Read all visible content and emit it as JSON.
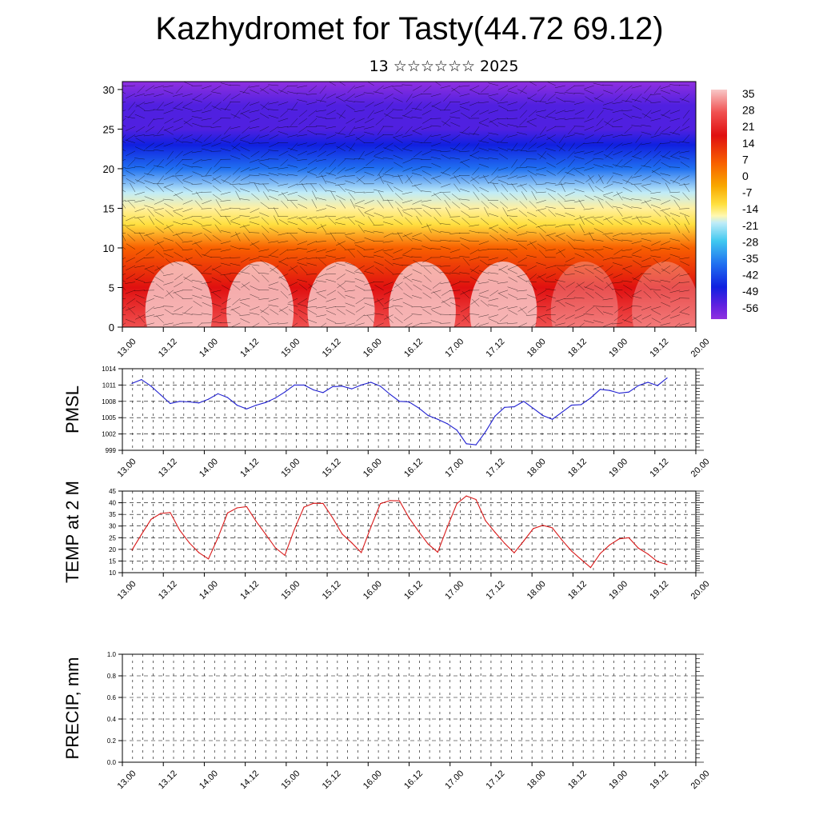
{
  "title": "Kazhydromet for Tasty(44.72 69.12)",
  "subtitle": "13 ☆☆☆☆☆☆ 2025",
  "x_tick_labels": [
    "13.00",
    "13.12",
    "14.00",
    "14.12",
    "15.00",
    "15.12",
    "16.00",
    "16.12",
    "17.00",
    "17.12",
    "18.00",
    "18.12",
    "19.00",
    "19.12",
    "20.00"
  ],
  "chart_data": [
    {
      "type": "heatmap",
      "title": "",
      "xlabel": "",
      "ylabel": "",
      "ylim": [
        0,
        31
      ],
      "y_ticks": [
        0,
        5,
        10,
        15,
        20,
        25,
        30
      ],
      "colorbar_ticks": [
        35,
        28,
        21,
        14,
        7,
        0,
        -7,
        -14,
        -21,
        -28,
        -35,
        -42,
        -49,
        -56
      ],
      "colors": {
        "warmest": "#f8c8c8",
        "red": "#e01010",
        "orange": "#f89000",
        "yellow": "#ffe040",
        "cyan": "#40c8f0",
        "blue": "#1030e0",
        "coldest": "#8020e0"
      },
      "vertical_profile": [
        {
          "height": 0,
          "temp": 28
        },
        {
          "height": 5,
          "temp": 24
        },
        {
          "height": 10,
          "temp": 12
        },
        {
          "height": 13,
          "temp": 0
        },
        {
          "height": 15,
          "temp": -8
        },
        {
          "height": 17,
          "temp": -16
        },
        {
          "height": 20,
          "temp": -30
        },
        {
          "height": 23,
          "temp": -52
        },
        {
          "height": 25,
          "temp": -56
        },
        {
          "height": 28,
          "temp": -58
        },
        {
          "height": 31,
          "temp": -60
        }
      ]
    },
    {
      "type": "line",
      "ylabel": "PMSL",
      "ylim": [
        999,
        1014
      ],
      "y_ticks": [
        999,
        1002,
        1005,
        1008,
        1011,
        1014
      ],
      "color": "#1f1fd0",
      "series": [
        {
          "values": [
            1011.3,
            1012.0,
            1010.8,
            1009.2,
            1007.6,
            1008.0,
            1007.9,
            1007.7,
            1008.4,
            1009.4,
            1008.7,
            1007.3,
            1006.6,
            1007.3,
            1007.8,
            1008.6,
            1009.7,
            1011.0,
            1011.0,
            1010.1,
            1009.6,
            1010.7,
            1010.8,
            1010.3,
            1011.0,
            1011.5,
            1010.8,
            1009.3,
            1008.0,
            1007.9,
            1006.8,
            1005.4,
            1004.7,
            1003.9,
            1002.7,
            1000.2,
            1000.0,
            1002.4,
            1005.3,
            1006.9,
            1007.0,
            1008.0,
            1006.7,
            1005.4,
            1004.7,
            1006.0,
            1007.3,
            1007.4,
            1008.6,
            1010.2,
            1010.0,
            1009.5,
            1009.7,
            1010.9,
            1011.5,
            1010.9,
            1012.3
          ]
        }
      ]
    },
    {
      "type": "line",
      "ylabel": "TEMP at 2 M",
      "ylim": [
        10,
        45
      ],
      "y_ticks": [
        10,
        15,
        20,
        25,
        30,
        35,
        40,
        45
      ],
      "color": "#d81818",
      "series": [
        {
          "values": [
            19.7,
            26.4,
            32.9,
            35.4,
            35.8,
            28.2,
            22.8,
            18.6,
            15.9,
            25.0,
            35.6,
            37.8,
            38.3,
            32.0,
            26.4,
            20.7,
            17.4,
            28.6,
            38.1,
            39.8,
            39.7,
            33.5,
            26.6,
            22.8,
            18.6,
            29.6,
            39.6,
            40.9,
            40.8,
            33.5,
            27.7,
            22.3,
            18.8,
            29.5,
            39.6,
            42.9,
            41.4,
            32.3,
            27.3,
            22.6,
            18.5,
            23.6,
            28.9,
            30.3,
            29.2,
            24.0,
            19.3,
            15.7,
            12.2,
            18.2,
            21.9,
            24.5,
            25.0,
            20.5,
            18.0,
            14.7,
            13.5
          ]
        }
      ]
    },
    {
      "type": "bar",
      "ylabel": "PRECIP, mm",
      "ylim": [
        0.0,
        1.0
      ],
      "y_ticks": [
        "0.0",
        "0.2",
        "0.4",
        "0.6",
        "0.8",
        "1.0"
      ],
      "series": [
        {
          "values": []
        }
      ]
    }
  ]
}
